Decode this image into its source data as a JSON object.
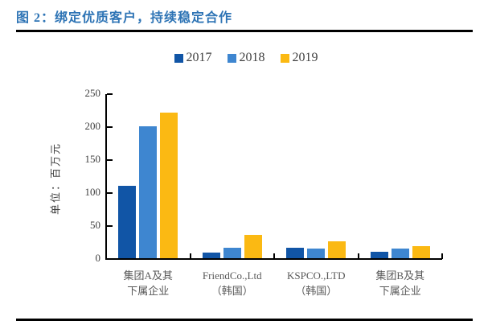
{
  "header": {
    "title": "图 2：绑定优质客户，持续稳定合作"
  },
  "chart_data": {
    "type": "bar",
    "title": "",
    "unit_label": "单位：百万元",
    "categories": [
      "集团A及其下属企业",
      "FriendCo.,Ltd（韩国）",
      "KSPCO.,LTD（韩国）",
      "集团B及其下属企业"
    ],
    "category_lines": [
      [
        "集团A及其",
        "下属企业"
      ],
      [
        "FriendCo.,Ltd",
        "（韩国）"
      ],
      [
        "KSPCO.,LTD",
        "（韩国）"
      ],
      [
        "集团B及其",
        "下属企业"
      ]
    ],
    "series": [
      {
        "name": "2017",
        "color": "#1155A6",
        "values": [
          110,
          9,
          16,
          10
        ]
      },
      {
        "name": "2018",
        "color": "#3E86D0",
        "values": [
          200,
          16,
          15,
          15
        ]
      },
      {
        "name": "2019",
        "color": "#FBB913",
        "values": [
          221,
          35,
          26,
          18
        ]
      }
    ],
    "y_ticks": [
      0,
      50,
      100,
      150,
      200,
      250
    ],
    "ylim": [
      0,
      250
    ],
    "xlabel": "",
    "ylabel": "单位：百万元",
    "grid": false,
    "legend_position": "top"
  },
  "colors": {
    "title_blue": "#2E74B5",
    "rule_black": "#000000",
    "axis_text": "#404040",
    "category_text": "#595959"
  }
}
